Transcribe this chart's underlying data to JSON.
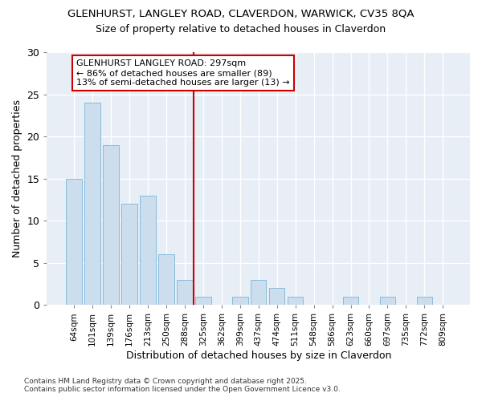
{
  "title1": "GLENHURST, LANGLEY ROAD, CLAVERDON, WARWICK, CV35 8QA",
  "title2": "Size of property relative to detached houses in Claverdon",
  "xlabel": "Distribution of detached houses by size in Claverdon",
  "ylabel": "Number of detached properties",
  "categories": [
    "64sqm",
    "101sqm",
    "139sqm",
    "176sqm",
    "213sqm",
    "250sqm",
    "288sqm",
    "325sqm",
    "362sqm",
    "399sqm",
    "437sqm",
    "474sqm",
    "511sqm",
    "548sqm",
    "586sqm",
    "623sqm",
    "660sqm",
    "697sqm",
    "735sqm",
    "772sqm",
    "809sqm"
  ],
  "values": [
    15,
    24,
    19,
    12,
    13,
    6,
    3,
    1,
    0,
    1,
    3,
    2,
    1,
    0,
    0,
    1,
    0,
    1,
    0,
    1,
    0
  ],
  "bar_color": "#ccdded",
  "bar_edge_color": "#88bbdd",
  "vline_x_idx": 6.5,
  "vline_color": "#cc0000",
  "annotation_title": "GLENHURST LANGLEY ROAD: 297sqm",
  "annotation_line1": "← 86% of detached houses are smaller (89)",
  "annotation_line2": "13% of semi-detached houses are larger (13) →",
  "annotation_box_color": "#cc0000",
  "ylim": [
    0,
    30
  ],
  "yticks": [
    0,
    5,
    10,
    15,
    20,
    25,
    30
  ],
  "footer1": "Contains HM Land Registry data © Crown copyright and database right 2025.",
  "footer2": "Contains public sector information licensed under the Open Government Licence v3.0.",
  "bg_color": "#ffffff",
  "plot_bg_color": "#e8eef6"
}
